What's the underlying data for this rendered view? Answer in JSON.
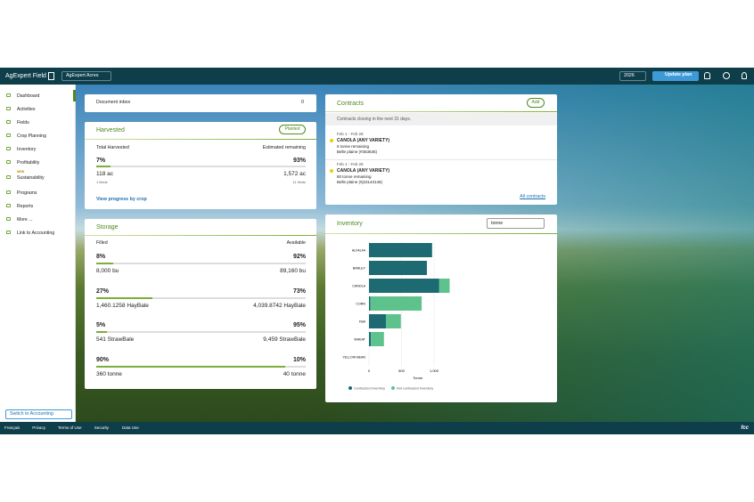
{
  "topbar": {
    "logo": "AgExpert Field",
    "farm_select": "AgExpert Acres",
    "year_select": "2026",
    "update_button": "Update plan"
  },
  "sidebar": {
    "items": [
      "Dashboard",
      "Activities",
      "Fields",
      "Crop Planning",
      "Inventory",
      "Profitability",
      "Sustainability",
      "Programs",
      "Reports",
      "More ...",
      "Link to Accounting"
    ],
    "new_badge": "NEW",
    "switch_button": "Switch to Accounting"
  },
  "document_inbox": {
    "title": "Document inbox",
    "count": 0
  },
  "harvested": {
    "title": "Harvested",
    "button": "Planted",
    "left_label": "Total Harvested",
    "right_label": "Estimated remaining",
    "filled": {
      "value": 7,
      "label": "7%"
    },
    "remaining": "93%",
    "left_area": "118 ac",
    "right_area": "1,572 ac",
    "left_fields": "1 fields",
    "right_fields": "11 fields",
    "link": "View progress by crop"
  },
  "storage": {
    "title": "Storage",
    "left_label": "Filled",
    "right_label": "Available",
    "rows": [
      {
        "filled": {
          "value": 8,
          "label": "8%"
        },
        "available": "92%",
        "left_amount": "8,000 bu",
        "right_amount": "89,160 bu"
      },
      {
        "filled": {
          "value": 27,
          "label": "27%"
        },
        "available": "73%",
        "left_amount": "1,460.1258 HayBale",
        "right_amount": "4,039.8742 HayBale"
      },
      {
        "filled": {
          "value": 5,
          "label": "5%"
        },
        "available": "95%",
        "left_amount": "541 StrawBale",
        "right_amount": "9,459 StrawBale"
      },
      {
        "filled": {
          "value": 90,
          "label": "90%"
        },
        "available": "10%",
        "left_amount": "360 tonne",
        "right_amount": "40 tonne"
      }
    ]
  },
  "contracts": {
    "title": "Contracts",
    "button": "Add",
    "subtitle": "Contracts closing in the next 31 days.",
    "items": [
      {
        "dates": "Feb 1 - Feb 28",
        "crop": "CANOLA (ANY VARIETY)",
        "remaining": "6 tonne remaining",
        "location": "Belle plaine (#363636)"
      },
      {
        "dates": "Feb 1 - Feb 28",
        "crop": "CANOLA (ANY VARIETY)",
        "remaining": "80 tonne remaining",
        "location": "Belle plaine (#j23143146)"
      }
    ],
    "link": "All contracts"
  },
  "inventory": {
    "title": "Inventory",
    "unit_select": "tonne"
  },
  "chart_data": {
    "type": "bar",
    "orientation": "horizontal",
    "stacked": true,
    "categories": [
      "ALFALFA",
      "BARLEY",
      "CANOLA",
      "CORN",
      "FBA",
      "WHEAT",
      "YELLOW BEAN"
    ],
    "series": [
      {
        "name": "Contracted inventory",
        "color": "#1d6a73",
        "values": [
          970,
          890,
          1080,
          20,
          260,
          30,
          0
        ]
      },
      {
        "name": "Not contracted inventory",
        "color": "#5ec28c",
        "values": [
          0,
          0,
          160,
          790,
          230,
          200,
          0
        ]
      }
    ],
    "xlim": [
      0,
      1500
    ],
    "xticks": [
      0,
      500,
      {
        "value": 1000,
        "label": "1,000"
      }
    ],
    "xlabel": "Tonne",
    "grid": true
  },
  "footer": {
    "links": [
      "Français",
      "Privacy",
      "Terms of Use",
      "Security",
      "Data Use"
    ],
    "logo": "fcc"
  }
}
